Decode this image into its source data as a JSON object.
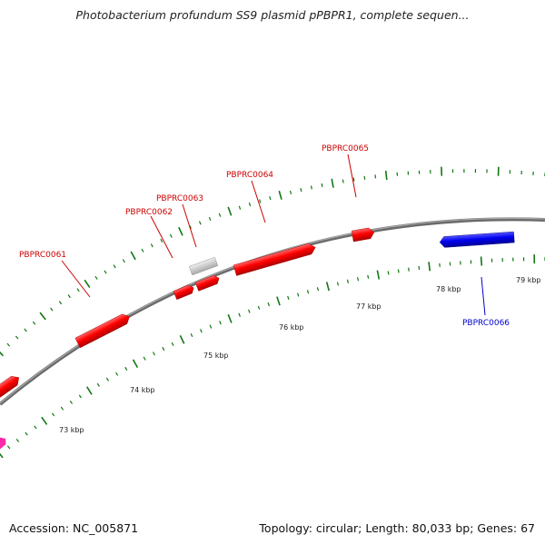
{
  "header": {
    "title": "Photobacterium profundum SS9 plasmid pPBPR1, complete sequen..."
  },
  "footer": {
    "accession": "Accession: NC_005871",
    "summary": "Topology: circular; Length: 80,033 bp; Genes: 67"
  },
  "colors": {
    "forward_gene": "#ff0000",
    "reverse_gene": "#0000ee",
    "other_gene": "#cccccc",
    "pseudo_gene": "#ff2aa6",
    "backbone": "#808080",
    "tick": "#117711",
    "label_forward": "#cc0000",
    "label_reverse": "#0000cc"
  },
  "scale": {
    "labels": [
      "73 kbp",
      "74 kbp",
      "75 kbp",
      "76 kbp",
      "77 kbp",
      "78 kbp",
      "79 kbp"
    ]
  },
  "genes": {
    "labels": [
      {
        "name": "PBPRC0061",
        "strand": "forward"
      },
      {
        "name": "PBPRC0062",
        "strand": "forward"
      },
      {
        "name": "PBPRC0063",
        "strand": "forward"
      },
      {
        "name": "PBPRC0064",
        "strand": "forward"
      },
      {
        "name": "PBPRC0065",
        "strand": "forward"
      },
      {
        "name": "PBPRC0066",
        "strand": "reverse"
      }
    ]
  }
}
